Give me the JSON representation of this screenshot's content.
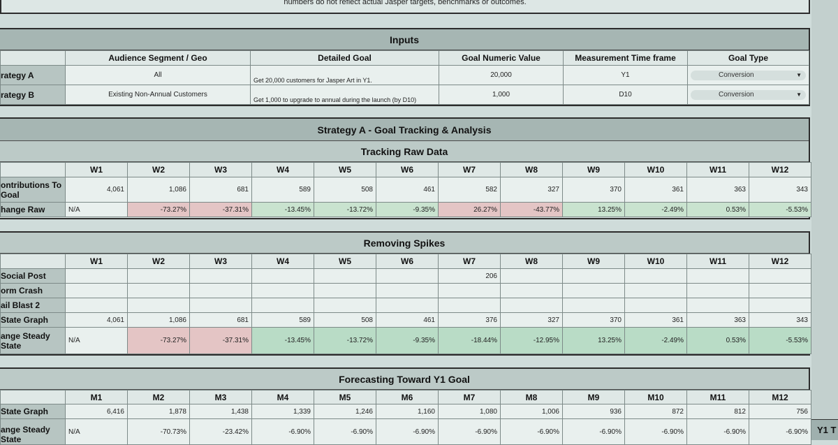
{
  "topnote": "numbers do not reflect actual Jasper targets, benchmarks or outcomes.",
  "inputs": {
    "title": "Inputs",
    "headers": [
      "Audience Segment / Geo",
      "Detailed Goal",
      "Goal Numeric Value",
      "Measurement Time frame",
      "Goal Type"
    ],
    "rows": [
      {
        "label": "rategy A",
        "audience": "All",
        "goal": "Get 20,000 customers for Jasper Art in Y1.",
        "value": "20,000",
        "timeframe": "Y1",
        "type": "Conversion"
      },
      {
        "label": "rategy B",
        "audience": "Existing Non-Annual Customers",
        "goal": "Get 1,000 to upgrade to annual during the launch (by D10)",
        "value": "1,000",
        "timeframe": "D10",
        "type": "Conversion"
      }
    ]
  },
  "strategyA": {
    "title": "Strategy A - Goal Tracking & Analysis"
  },
  "tracking": {
    "title": "Tracking Raw Data",
    "weeks": [
      "W1",
      "W2",
      "W3",
      "W4",
      "W5",
      "W6",
      "W7",
      "W8",
      "W9",
      "W10",
      "W11",
      "W12"
    ],
    "contrib_label": "ontributions To Goal",
    "contrib": [
      "4,061",
      "1,086",
      "681",
      "589",
      "508",
      "461",
      "582",
      "327",
      "370",
      "361",
      "363",
      "343"
    ],
    "change_label": "hange Raw",
    "change": [
      "N/A",
      "-73.27%",
      "-37.31%",
      "-13.45%",
      "-13.72%",
      "-9.35%",
      "26.27%",
      "-43.77%",
      "13.25%",
      "-2.49%",
      "0.53%",
      "-5.53%"
    ]
  },
  "spikes": {
    "title": "Removing Spikes",
    "weeks": [
      "W1",
      "W2",
      "W3",
      "W4",
      "W5",
      "W6",
      "W7",
      "W8",
      "W9",
      "W10",
      "W11",
      "W12"
    ],
    "social_label": "Social Post",
    "social_w7": "206",
    "crash_label": "orm Crash",
    "blast_label": "ail Blast 2",
    "steady_label": "State Graph",
    "steady": [
      "4,061",
      "1,086",
      "681",
      "589",
      "508",
      "461",
      "376",
      "327",
      "370",
      "361",
      "363",
      "343"
    ],
    "chsteady_label": "ange Steady State",
    "chsteady": [
      "N/A",
      "-73.27%",
      "-37.31%",
      "-13.45%",
      "-13.72%",
      "-9.35%",
      "-18.44%",
      "-12.95%",
      "13.25%",
      "-2.49%",
      "0.53%",
      "-5.53%"
    ]
  },
  "forecast": {
    "title": "Forecasting Toward Y1 Goal",
    "months": [
      "M1",
      "M2",
      "M3",
      "M4",
      "M5",
      "M6",
      "M7",
      "M8",
      "M9",
      "M10",
      "M11",
      "M12"
    ],
    "steady_label": "State Graph",
    "steady": [
      "6,416",
      "1,878",
      "1,438",
      "1,339",
      "1,246",
      "1,160",
      "1,080",
      "1,006",
      "936",
      "872",
      "812",
      "756"
    ],
    "change_label": "ange Steady State",
    "change": [
      "N/A",
      "-70.73%",
      "-23.42%",
      "-6.90%",
      "-6.90%",
      "-6.90%",
      "-6.90%",
      "-6.90%",
      "-6.90%",
      "-6.90%",
      "-6.90%",
      "-6.90%"
    ]
  },
  "y1_label": "Y1 T"
}
